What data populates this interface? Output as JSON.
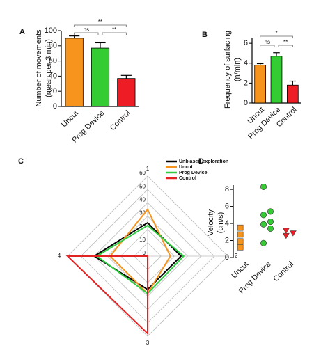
{
  "chart_data": [
    {
      "type": "bar",
      "label": "A",
      "y_label": [
        "Number of movements",
        "(mean per 3 min)"
      ],
      "categories": [
        "Uncut",
        "Prog Device",
        "Control"
      ],
      "values": [
        90,
        77,
        37
      ],
      "errors": [
        3,
        7,
        4
      ],
      "colors": [
        "#f7941d",
        "#33cc33",
        "#ee1c24"
      ],
      "ylim": [
        0,
        100
      ],
      "yticks": [
        0,
        20,
        40,
        60,
        80,
        100
      ],
      "annotations": [
        {
          "text": "ns",
          "from": 0,
          "to": 1
        },
        {
          "text": "**",
          "from": 1,
          "to": 2
        },
        {
          "text": "**",
          "from": 0,
          "to": 2
        }
      ]
    },
    {
      "type": "bar",
      "label": "B",
      "y_label": [
        "Frequency of surfacing",
        "(n/min)"
      ],
      "categories": [
        "Uncut",
        "Prog Device",
        "Control"
      ],
      "values": [
        3.8,
        4.7,
        1.8
      ],
      "errors": [
        0.15,
        0.35,
        0.4
      ],
      "colors": [
        "#f7941d",
        "#33cc33",
        "#ee1c24"
      ],
      "ylim": [
        0,
        6.5
      ],
      "yticks": [
        0,
        2,
        4,
        6
      ],
      "annotations": [
        {
          "text": "ns",
          "from": 0,
          "to": 1
        },
        {
          "text": "**",
          "from": 1,
          "to": 2
        },
        {
          "text": "*",
          "from": 0,
          "to": 2
        }
      ]
    },
    {
      "type": "radar",
      "label": "C",
      "axes": [
        "1",
        "2",
        "3",
        "4"
      ],
      "rlim": [
        0,
        60
      ],
      "rticks": [
        0,
        10,
        20,
        30,
        40,
        50,
        60
      ],
      "series": [
        {
          "name": "Unbiased exploration",
          "color": "#000000",
          "values": [
            25,
            25,
            25,
            40
          ]
        },
        {
          "name": "Uncut",
          "color": "#f7941d",
          "values": [
            35,
            17,
            28,
            28
          ]
        },
        {
          "name": "Prog Device",
          "color": "#2ecc40",
          "values": [
            23,
            27,
            28,
            38
          ]
        },
        {
          "name": "Control",
          "color": "#e32222",
          "values": [
            0,
            0,
            58,
            60
          ]
        }
      ]
    },
    {
      "type": "strip",
      "label": "D",
      "y_label": [
        "Velocity",
        "(cm/s)"
      ],
      "ylim": [
        0,
        8.5
      ],
      "yticks": [
        0,
        2,
        4,
        6,
        8
      ],
      "groups": [
        {
          "name": "Uncut",
          "color": "#f7941d",
          "marker": "square",
          "values": [
            3.5,
            2.7,
            1.9,
            1.2
          ]
        },
        {
          "name": "Prog Device",
          "color": "#33cc33",
          "marker": "circle",
          "values": [
            8.3,
            5.4,
            5.0,
            4.2,
            3.9,
            3.4,
            1.7
          ]
        },
        {
          "name": "Control",
          "color": "#ee1c24",
          "marker": "triangle",
          "values": [
            3.2,
            2.9,
            2.6
          ]
        }
      ]
    }
  ]
}
